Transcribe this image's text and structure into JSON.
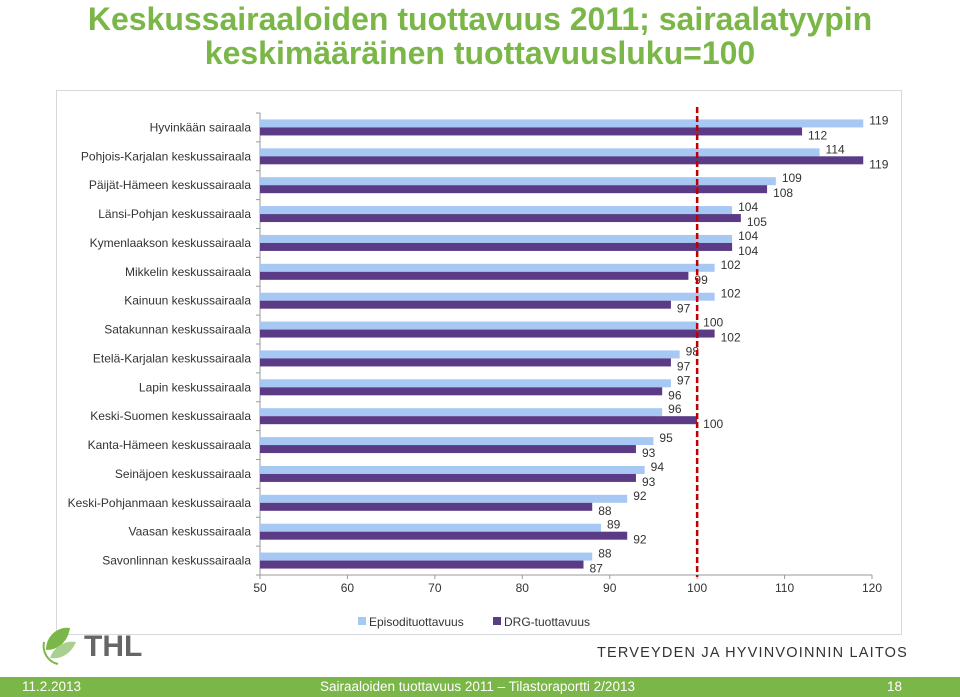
{
  "slide": {
    "title_line1": "Keskussairaaloiden tuottavuus 2011; sairaalatyypin",
    "title_line2": "keskimääräinen tuottavuusluku=100",
    "logo_text": "THL",
    "org_name": "TERVEYDEN JA HYVINVOINNIN LAITOS",
    "footer_date": "11.2.2013",
    "footer_text": "Sairaaloiden tuottavuus 2011 – Tilastoraportti  2/2013",
    "page_number": "18"
  },
  "colors": {
    "brand_green": "#7ab648",
    "series1": "#a8c8f4",
    "series2": "#5b3a86",
    "reference_line": "#c00000"
  },
  "chart_data": {
    "type": "bar",
    "orientation": "horizontal",
    "categories": [
      "Hyvinkään sairaala",
      "Pohjois-Karjalan keskussairaala",
      "Päijät-Hämeen keskussairaala",
      "Länsi-Pohjan keskussairaala",
      "Kymenlaakson keskussairaala",
      "Mikkelin keskussairaala",
      "Kainuun keskussairaala",
      "Satakunnan keskussairaala",
      "Etelä-Karjalan keskussairaala",
      "Lapin keskussairaala",
      "Keski-Suomen keskussairaala",
      "Kanta-Hämeen keskussairaala",
      "Seinäjoen keskussairaala",
      "Keski-Pohjanmaan keskussairaala",
      "Vaasan keskussairaala",
      "Savonlinnan keskussairaala"
    ],
    "series": [
      {
        "name": "Episodituottavuus",
        "values": [
          119,
          114,
          109,
          104,
          104,
          102,
          102,
          100,
          98,
          97,
          96,
          95,
          94,
          92,
          89,
          88
        ]
      },
      {
        "name": "DRG-tuottavuus",
        "values": [
          112,
          119,
          108,
          105,
          104,
          99,
          97,
          102,
          97,
          96,
          100,
          93,
          93,
          88,
          92,
          87
        ]
      }
    ],
    "reference_value": 100,
    "xlim": [
      50,
      120
    ],
    "xticks": [
      "50",
      "60",
      "70",
      "80",
      "90",
      "100",
      "110",
      "120"
    ],
    "grid": false,
    "legend_position": "bottom"
  }
}
